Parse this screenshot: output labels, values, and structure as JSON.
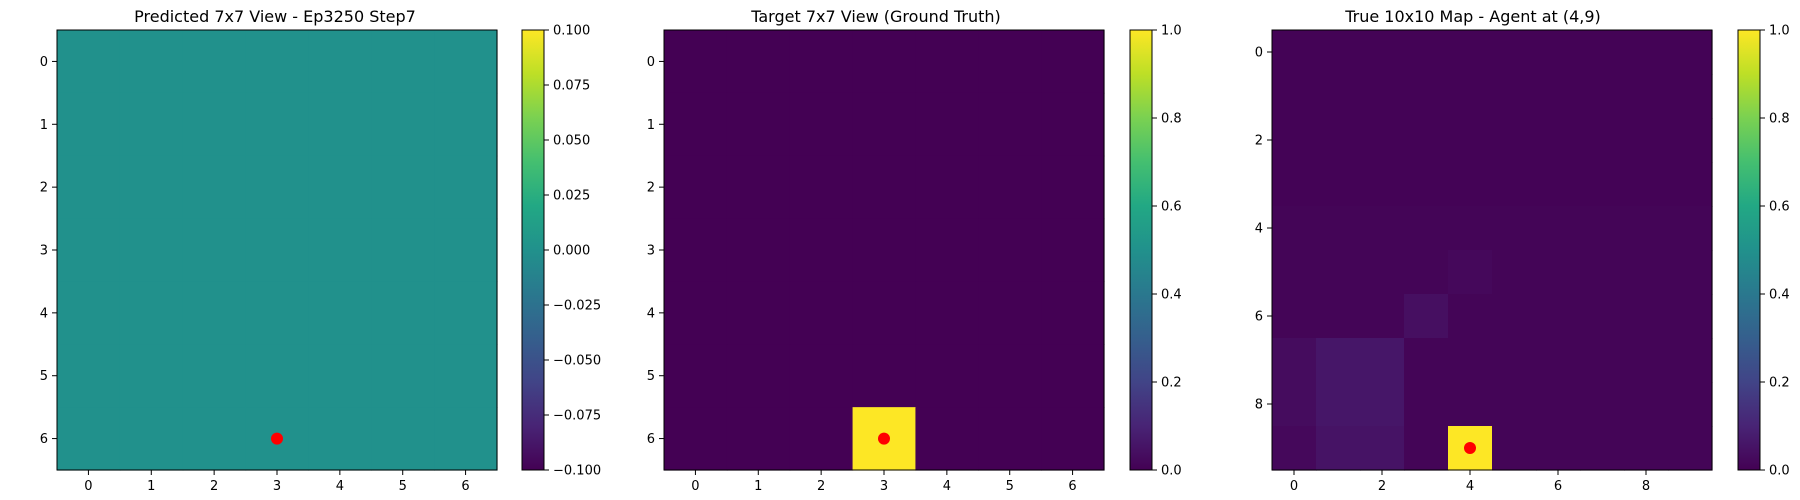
{
  "chart_data": [
    {
      "type": "heatmap",
      "title": "Predicted 7x7 View - Ep3250 Step7",
      "grid_size": 7,
      "values": [
        [
          0,
          0,
          0,
          0,
          0,
          0,
          0
        ],
        [
          0,
          0,
          0,
          0,
          0,
          0,
          0
        ],
        [
          0,
          0,
          0,
          0,
          0,
          0,
          0
        ],
        [
          0,
          0,
          0,
          0,
          0,
          0,
          0
        ],
        [
          0,
          0,
          0,
          0,
          0,
          0,
          0
        ],
        [
          0,
          0,
          0,
          0,
          0,
          0,
          0
        ],
        [
          0,
          0,
          0,
          0,
          0,
          0,
          0
        ]
      ],
      "vmin": -0.1,
      "vmax": 0.1,
      "x_ticks": [
        "0",
        "1",
        "2",
        "3",
        "4",
        "5",
        "6"
      ],
      "y_ticks": [
        "0",
        "1",
        "2",
        "3",
        "4",
        "5",
        "6"
      ],
      "colorbar_ticks": [
        "0.100",
        "0.075",
        "0.050",
        "0.025",
        "0.000",
        "−0.025",
        "−0.050",
        "−0.075",
        "−0.100"
      ],
      "colorbar_tick_values": [
        0.1,
        0.075,
        0.05,
        0.025,
        0,
        -0.025,
        -0.05,
        -0.075,
        -0.1
      ],
      "marker": {
        "x": 3,
        "y": 6,
        "color": "#ff0000"
      },
      "colormap": "viridis"
    },
    {
      "type": "heatmap",
      "title": "Target 7x7 View (Ground Truth)",
      "grid_size": 7,
      "values": [
        [
          0,
          0,
          0,
          0,
          0,
          0,
          0
        ],
        [
          0,
          0,
          0,
          0,
          0,
          0,
          0
        ],
        [
          0,
          0,
          0,
          0,
          0,
          0,
          0
        ],
        [
          0,
          0,
          0,
          0,
          0,
          0,
          0
        ],
        [
          0,
          0,
          0,
          0,
          0,
          0,
          0
        ],
        [
          0,
          0,
          0,
          0,
          0,
          0,
          0
        ],
        [
          0,
          0,
          0,
          1,
          0,
          0,
          0
        ]
      ],
      "vmin": 0,
      "vmax": 1,
      "x_ticks": [
        "0",
        "1",
        "2",
        "3",
        "4",
        "5",
        "6"
      ],
      "y_ticks": [
        "0",
        "1",
        "2",
        "3",
        "4",
        "5",
        "6"
      ],
      "colorbar_ticks": [
        "1.0",
        "0.8",
        "0.6",
        "0.4",
        "0.2",
        "0.0"
      ],
      "colorbar_tick_values": [
        1,
        0.8,
        0.6,
        0.4,
        0.2,
        0
      ],
      "marker": {
        "x": 3,
        "y": 6,
        "color": "#ff0000"
      },
      "colormap": "viridis"
    },
    {
      "type": "heatmap",
      "title": "True 10x10 Map - Agent at (4,9)",
      "grid_size": 10,
      "values": [
        [
          0.005,
          0.005,
          0.005,
          0.005,
          0.005,
          0.005,
          0.005,
          0.005,
          0.005,
          0.005
        ],
        [
          0.005,
          0.005,
          0.005,
          0.005,
          0.005,
          0.005,
          0.005,
          0.005,
          0.005,
          0.005
        ],
        [
          0.005,
          0.005,
          0.005,
          0.005,
          0.005,
          0.005,
          0.005,
          0.005,
          0.005,
          0.005
        ],
        [
          0.005,
          0.005,
          0.005,
          0.005,
          0.005,
          0.005,
          0.005,
          0.005,
          0.005,
          0.005
        ],
        [
          0.01,
          0.01,
          0.01,
          0.01,
          0.01,
          0.01,
          0.01,
          0.01,
          0.01,
          0.01
        ],
        [
          0.01,
          0.01,
          0.01,
          0.01,
          0.02,
          0.01,
          0.01,
          0.01,
          0.01,
          0.01
        ],
        [
          0.01,
          0.01,
          0.01,
          0.04,
          0.01,
          0.01,
          0.01,
          0.01,
          0.01,
          0.01
        ],
        [
          0.03,
          0.06,
          0.06,
          0.01,
          0.01,
          0.01,
          0.01,
          0.01,
          0.01,
          0.01
        ],
        [
          0.03,
          0.06,
          0.06,
          0.01,
          0.01,
          0.01,
          0.01,
          0.01,
          0.01,
          0.01
        ],
        [
          0.02,
          0.05,
          0.05,
          0.01,
          1.0,
          0.01,
          0.01,
          0.01,
          0.01,
          0.01
        ]
      ],
      "vmin": 0,
      "vmax": 1,
      "x_ticks": [
        "0",
        "2",
        "4",
        "6",
        "8"
      ],
      "x_tick_values": [
        0,
        2,
        4,
        6,
        8
      ],
      "y_ticks": [
        "0",
        "2",
        "4",
        "6",
        "8"
      ],
      "y_tick_values": [
        0,
        2,
        4,
        6,
        8
      ],
      "colorbar_ticks": [
        "1.0",
        "0.8",
        "0.6",
        "0.4",
        "0.2",
        "0.0"
      ],
      "colorbar_tick_values": [
        1,
        0.8,
        0.6,
        0.4,
        0.2,
        0
      ],
      "marker": {
        "x": 4,
        "y": 9,
        "color": "#ff0000"
      },
      "colormap": "viridis"
    }
  ]
}
